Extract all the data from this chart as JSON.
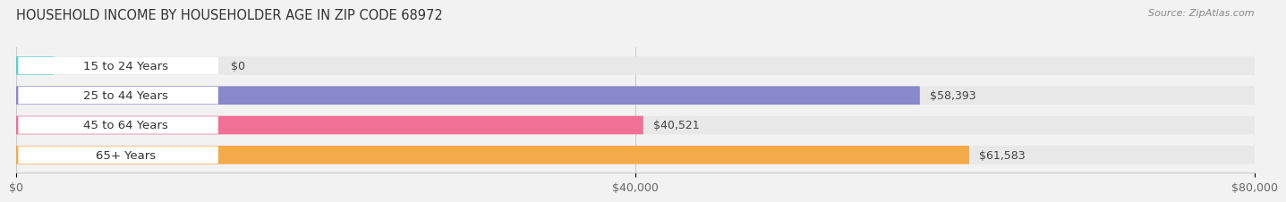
{
  "title": "HOUSEHOLD INCOME BY HOUSEHOLDER AGE IN ZIP CODE 68972",
  "source": "Source: ZipAtlas.com",
  "categories": [
    "15 to 24 Years",
    "25 to 44 Years",
    "45 to 64 Years",
    "65+ Years"
  ],
  "values": [
    0,
    58393,
    40521,
    61583
  ],
  "value_labels": [
    "$0",
    "$58,393",
    "$40,521",
    "$61,583"
  ],
  "bar_colors": [
    "#5ecfcf",
    "#8888cc",
    "#f07096",
    "#f5aa4a"
  ],
  "bar_bg_color": "#e8e8e8",
  "label_bg_color": "#ffffff",
  "background_color": "#f2f2f2",
  "xlim": [
    0,
    80000
  ],
  "xticks": [
    0,
    40000,
    80000
  ],
  "xtick_labels": [
    "$0",
    "$40,000",
    "$80,000"
  ],
  "bar_height": 0.62,
  "title_fontsize": 10.5,
  "label_fontsize": 9.5,
  "value_fontsize": 9,
  "tick_fontsize": 9
}
